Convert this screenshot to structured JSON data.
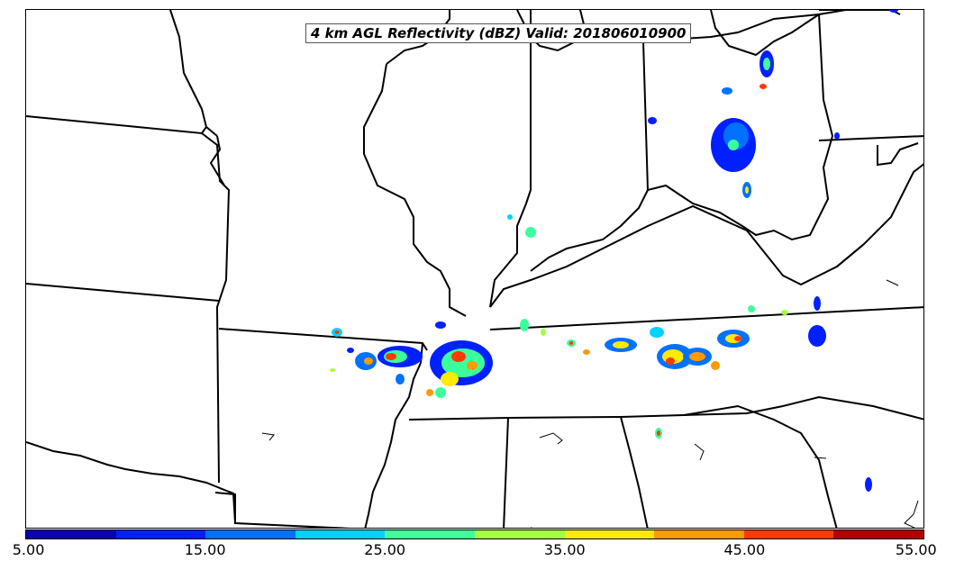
{
  "title": "4 km AGL Reflectivity (dBZ) Valid: 201806010900",
  "colorbar": {
    "colors": [
      "#0a00b4",
      "#0020ff",
      "#0072ff",
      "#00d2ff",
      "#3cff9c",
      "#a4ff3c",
      "#ffea00",
      "#ff9a00",
      "#ff3a00",
      "#b40000"
    ],
    "tick_labels": [
      "5.00",
      "15.00",
      "25.00",
      "35.00",
      "45.00",
      "55.00"
    ]
  },
  "map": {
    "layers": [
      "state-boundaries",
      "coastlines",
      "lakes"
    ],
    "field": "reflectivity",
    "units": "dBZ"
  }
}
